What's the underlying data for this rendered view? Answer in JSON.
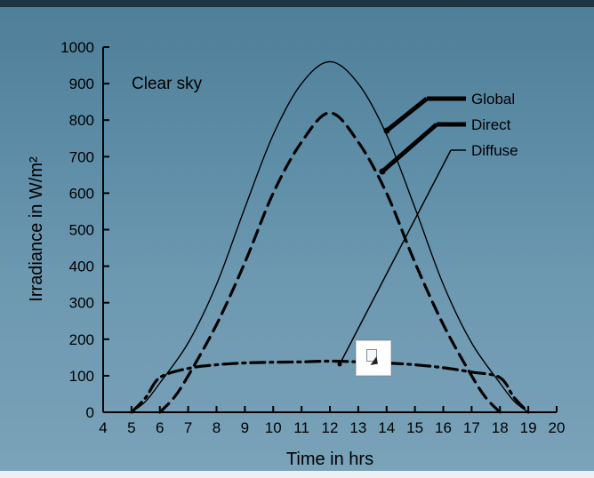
{
  "chart_data": {
    "type": "line",
    "annotation": "Clear sky",
    "xlabel": "Time in hrs",
    "ylabel": "Irradiance  in W/m²",
    "xlim": [
      4,
      20
    ],
    "ylim": [
      0,
      1000
    ],
    "xticks": [
      4,
      5,
      6,
      7,
      8,
      9,
      10,
      11,
      12,
      13,
      14,
      15,
      16,
      17,
      18,
      19,
      20
    ],
    "yticks": [
      0,
      100,
      200,
      300,
      400,
      500,
      600,
      700,
      800,
      900,
      1000
    ],
    "series": [
      {
        "name": "Global",
        "style": "solid",
        "x": [
          5,
          5.5,
          6,
          7,
          8,
          9,
          10,
          11,
          12,
          13,
          14,
          15,
          16,
          17,
          18,
          18.5,
          19
        ],
        "y": [
          0,
          30,
          80,
          190,
          350,
          560,
          760,
          900,
          960,
          900,
          760,
          560,
          350,
          190,
          80,
          30,
          0
        ]
      },
      {
        "name": "Direct",
        "style": "dashed",
        "x": [
          6,
          6.5,
          7,
          8,
          9,
          10,
          11,
          12,
          13,
          14,
          15,
          16,
          17,
          17.5,
          18
        ],
        "y": [
          0,
          40,
          100,
          240,
          410,
          600,
          740,
          820,
          740,
          600,
          410,
          240,
          100,
          40,
          0
        ]
      },
      {
        "name": "Diffuse",
        "style": "dash-dot",
        "x": [
          5,
          5.5,
          6,
          7,
          8,
          9,
          10,
          11,
          12,
          13,
          14,
          15,
          16,
          17,
          18,
          18.5,
          19
        ],
        "y": [
          0,
          40,
          95,
          120,
          130,
          135,
          137,
          138,
          140,
          138,
          135,
          130,
          122,
          110,
          95,
          40,
          0
        ]
      }
    ],
    "legend_placement": "right",
    "colors": {
      "axis": "#000000",
      "series": "#000000",
      "panel": "#5f8ea8"
    }
  }
}
